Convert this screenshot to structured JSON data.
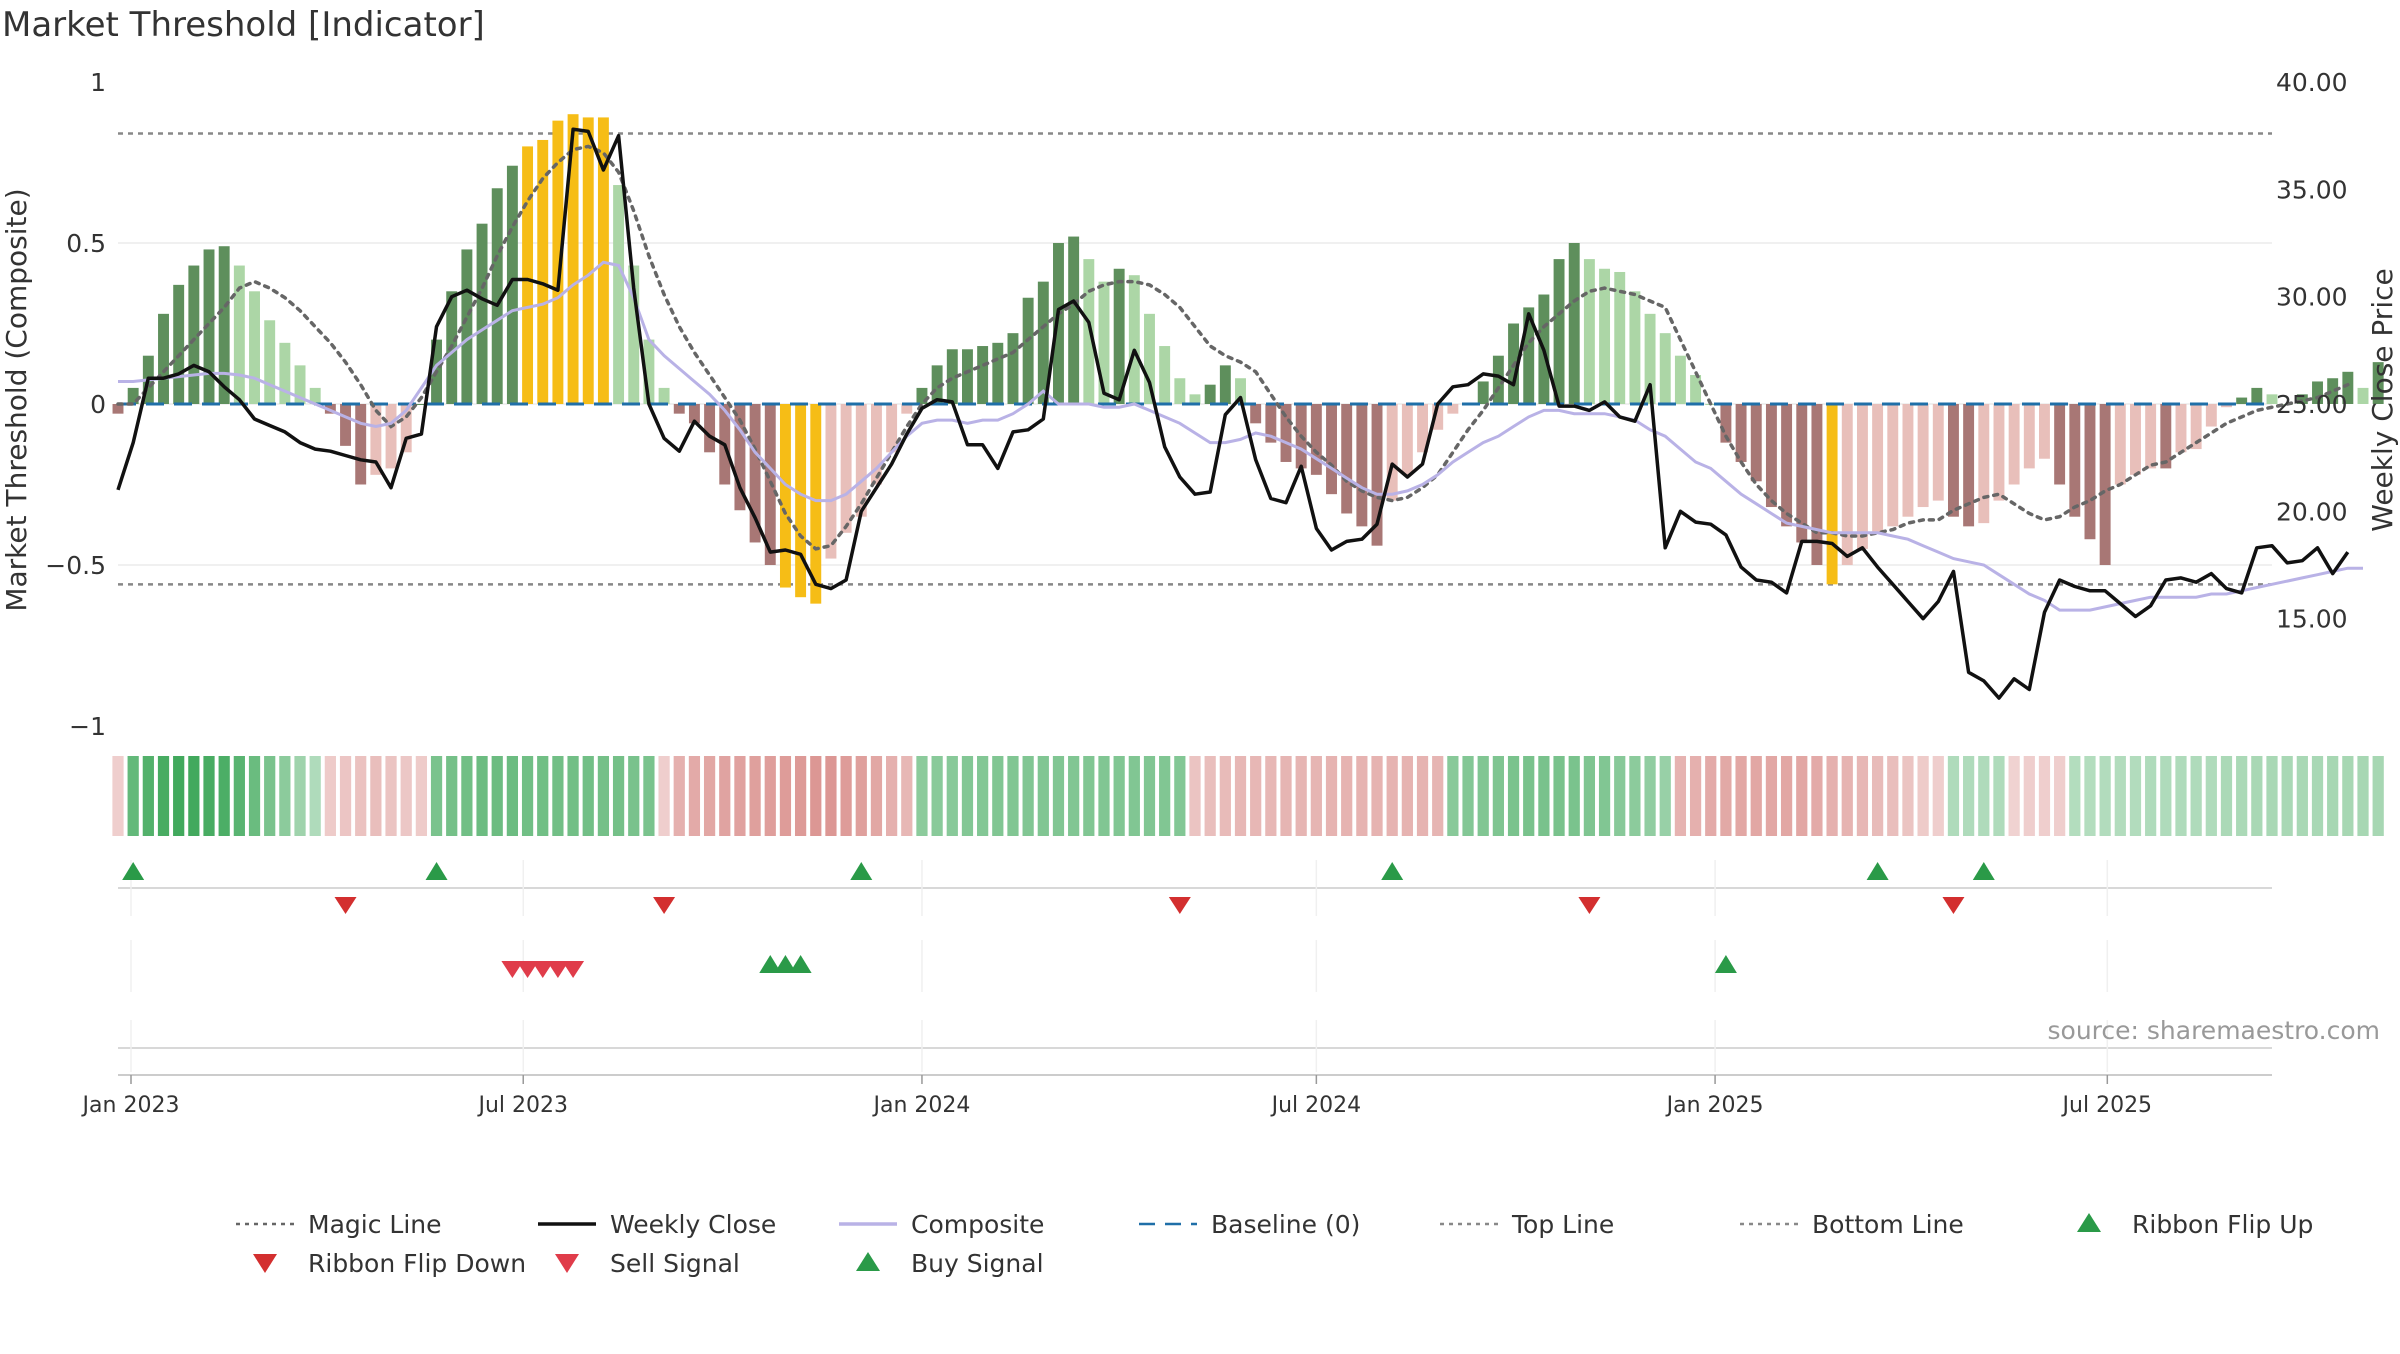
{
  "chart_data": {
    "type": "line",
    "title": "Market Threshold [Indicator]",
    "source_text": "source: sharemaestro.com",
    "left_axis": {
      "label": "Market Threshold (Composite)",
      "ylim": [
        -1,
        1
      ],
      "ticks": [
        1,
        0.5,
        0,
        -0.5,
        -1
      ],
      "tick_labels": [
        "1",
        "0.5",
        "0",
        "−0.5",
        "−1"
      ]
    },
    "right_axis": {
      "label": "Weekly Close Price",
      "ylim": [
        10.0,
        40.0
      ],
      "ticks": [
        40,
        35,
        30,
        25,
        20,
        15
      ],
      "tick_labels": [
        "40.00",
        "35.00",
        "30.00",
        "25.00",
        "20.00",
        "15.00"
      ]
    },
    "x_axis": {
      "start": "2022-12-26",
      "end": "2025-09-15",
      "ticks": [
        "2023-01-01",
        "2023-07-01",
        "2024-01-01",
        "2024-07-01",
        "2025-01-01",
        "2025-07-01"
      ],
      "tick_labels": [
        "Jan 2023",
        "Jul 2023",
        "Jan 2024",
        "Jul 2024",
        "Jan 2025",
        "Jul 2025"
      ]
    },
    "top_line": 0.84,
    "bottom_line": -0.56,
    "baseline": 0,
    "composite_bars": [
      -0.03,
      0.05,
      0.15,
      0.28,
      0.37,
      0.43,
      0.48,
      0.49,
      0.43,
      0.35,
      0.26,
      0.19,
      0.12,
      0.05,
      -0.03,
      -0.13,
      -0.25,
      -0.22,
      -0.2,
      -0.15,
      0.0,
      0.2,
      0.35,
      0.48,
      0.56,
      0.67,
      0.74,
      0.8,
      0.82,
      0.88,
      0.9,
      0.89,
      0.89,
      0.68,
      0.43,
      0.2,
      0.05,
      -0.03,
      -0.06,
      -0.15,
      -0.25,
      -0.33,
      -0.43,
      -0.5,
      -0.57,
      -0.6,
      -0.62,
      -0.48,
      -0.4,
      -0.35,
      -0.25,
      -0.15,
      -0.03,
      0.05,
      0.12,
      0.17,
      0.17,
      0.18,
      0.19,
      0.22,
      0.33,
      0.38,
      0.5,
      0.52,
      0.45,
      0.38,
      0.42,
      0.4,
      0.28,
      0.18,
      0.08,
      0.03,
      0.06,
      0.12,
      0.08,
      -0.06,
      -0.12,
      -0.18,
      -0.2,
      -0.22,
      -0.28,
      -0.34,
      -0.38,
      -0.44,
      -0.3,
      -0.22,
      -0.15,
      -0.08,
      -0.03,
      0.0,
      0.07,
      0.15,
      0.25,
      0.3,
      0.34,
      0.45,
      0.5,
      0.45,
      0.42,
      0.41,
      0.35,
      0.28,
      0.22,
      0.15,
      0.09,
      0.0,
      -0.12,
      -0.18,
      -0.24,
      -0.32,
      -0.38,
      -0.43,
      -0.5,
      -0.56,
      -0.5,
      -0.45,
      -0.4,
      -0.38,
      -0.35,
      -0.32,
      -0.3,
      -0.35,
      -0.38,
      -0.37,
      -0.3,
      -0.25,
      -0.2,
      -0.17,
      -0.25,
      -0.35,
      -0.42,
      -0.5,
      -0.25,
      -0.22,
      -0.2,
      -0.2,
      -0.15,
      -0.14,
      -0.07,
      -0.01,
      0.02,
      0.05,
      0.03,
      0.0,
      0.03,
      0.07,
      0.08,
      0.1,
      0.05,
      0.13
    ],
    "weekly_close": [
      21.0,
      23.2,
      26.2,
      26.2,
      26.4,
      26.8,
      26.5,
      25.8,
      25.2,
      24.3,
      24.0,
      23.7,
      23.2,
      22.9,
      22.8,
      22.6,
      22.4,
      22.3,
      21.1,
      23.4,
      23.6,
      28.6,
      30.0,
      30.3,
      29.9,
      29.6,
      30.8,
      30.8,
      30.6,
      30.3,
      37.8,
      37.7,
      35.9,
      37.5,
      30.4,
      25.0,
      23.4,
      22.8,
      24.2,
      23.5,
      23.1,
      21.1,
      19.7,
      18.1,
      18.2,
      18.0,
      16.6,
      16.4,
      16.8,
      20.0,
      21.1,
      22.2,
      23.6,
      24.8,
      25.2,
      25.1,
      23.1,
      23.1,
      22.0,
      23.7,
      23.8,
      24.3,
      29.4,
      29.8,
      28.8,
      25.5,
      25.2,
      27.5,
      26.0,
      23.0,
      21.6,
      20.8,
      20.9,
      24.5,
      25.3,
      22.4,
      20.6,
      20.4,
      22.1,
      19.2,
      18.2,
      18.6,
      18.7,
      19.4,
      22.2,
      21.6,
      22.2,
      25.0,
      25.8,
      25.9,
      26.4,
      26.3,
      25.9,
      29.2,
      27.5,
      24.9,
      24.9,
      24.7,
      25.1,
      24.4,
      24.2,
      25.9,
      18.3,
      20.0,
      19.5,
      19.4,
      18.9,
      17.4,
      16.8,
      16.7,
      16.2,
      18.6,
      18.6,
      18.5,
      17.9,
      18.3,
      17.4,
      16.6,
      15.8,
      15.0,
      15.8,
      17.2,
      12.5,
      12.1,
      11.3,
      12.2,
      11.7,
      15.3,
      16.8,
      16.5,
      16.3,
      16.3,
      15.7,
      15.1,
      15.6,
      16.8,
      16.9,
      16.7,
      17.1,
      16.4,
      16.2,
      18.3,
      18.4,
      17.6,
      17.7,
      18.3,
      17.1,
      18.1
    ],
    "composite_line": [
      0.07,
      0.07,
      0.075,
      0.08,
      0.085,
      0.09,
      0.095,
      0.095,
      0.09,
      0.08,
      0.06,
      0.04,
      0.02,
      0.0,
      -0.02,
      -0.04,
      -0.06,
      -0.07,
      -0.06,
      -0.02,
      0.05,
      0.12,
      0.16,
      0.2,
      0.23,
      0.26,
      0.29,
      0.3,
      0.31,
      0.33,
      0.37,
      0.4,
      0.44,
      0.43,
      0.33,
      0.2,
      0.15,
      0.11,
      0.07,
      0.03,
      -0.02,
      -0.08,
      -0.15,
      -0.2,
      -0.25,
      -0.28,
      -0.3,
      -0.3,
      -0.28,
      -0.24,
      -0.2,
      -0.15,
      -0.1,
      -0.06,
      -0.05,
      -0.05,
      -0.06,
      -0.05,
      -0.05,
      -0.03,
      0.0,
      0.04,
      0.0,
      0.0,
      0.0,
      -0.01,
      -0.01,
      0.0,
      -0.02,
      -0.04,
      -0.06,
      -0.09,
      -0.12,
      -0.12,
      -0.11,
      -0.09,
      -0.1,
      -0.12,
      -0.14,
      -0.17,
      -0.2,
      -0.23,
      -0.26,
      -0.28,
      -0.28,
      -0.27,
      -0.25,
      -0.22,
      -0.18,
      -0.15,
      -0.12,
      -0.1,
      -0.07,
      -0.04,
      -0.02,
      -0.02,
      -0.03,
      -0.03,
      -0.03,
      -0.04,
      -0.05,
      -0.08,
      -0.1,
      -0.14,
      -0.18,
      -0.2,
      -0.24,
      -0.28,
      -0.31,
      -0.34,
      -0.37,
      -0.38,
      -0.39,
      -0.4,
      -0.4,
      -0.4,
      -0.4,
      -0.41,
      -0.42,
      -0.44,
      -0.46,
      -0.48,
      -0.49,
      -0.5,
      -0.53,
      -0.56,
      -0.59,
      -0.61,
      -0.64,
      -0.64,
      -0.64,
      -0.63,
      -0.62,
      -0.61,
      -0.6,
      -0.6,
      -0.6,
      -0.6,
      -0.59,
      -0.59,
      -0.58,
      -0.57,
      -0.56,
      -0.55,
      -0.54,
      -0.53,
      -0.52,
      -0.51,
      -0.51
    ],
    "magic_line": [
      0.0,
      0.0,
      0.05,
      0.1,
      0.15,
      0.2,
      0.25,
      0.3,
      0.36,
      0.38,
      0.36,
      0.33,
      0.29,
      0.24,
      0.19,
      0.13,
      0.06,
      -0.02,
      -0.07,
      -0.04,
      0.02,
      0.1,
      0.18,
      0.27,
      0.36,
      0.46,
      0.55,
      0.63,
      0.7,
      0.75,
      0.79,
      0.8,
      0.78,
      0.72,
      0.6,
      0.46,
      0.34,
      0.24,
      0.16,
      0.09,
      0.02,
      -0.05,
      -0.14,
      -0.24,
      -0.34,
      -0.41,
      -0.45,
      -0.44,
      -0.38,
      -0.31,
      -0.23,
      -0.15,
      -0.07,
      0.0,
      0.05,
      0.08,
      0.1,
      0.12,
      0.14,
      0.16,
      0.2,
      0.24,
      0.28,
      0.31,
      0.35,
      0.37,
      0.38,
      0.38,
      0.37,
      0.34,
      0.3,
      0.24,
      0.18,
      0.15,
      0.13,
      0.1,
      0.03,
      -0.04,
      -0.1,
      -0.15,
      -0.19,
      -0.24,
      -0.27,
      -0.29,
      -0.3,
      -0.29,
      -0.26,
      -0.22,
      -0.15,
      -0.08,
      -0.02,
      0.05,
      0.12,
      0.19,
      0.24,
      0.28,
      0.32,
      0.35,
      0.36,
      0.35,
      0.34,
      0.32,
      0.3,
      0.2,
      0.1,
      0.0,
      -0.1,
      -0.18,
      -0.25,
      -0.3,
      -0.34,
      -0.37,
      -0.4,
      -0.4,
      -0.41,
      -0.41,
      -0.4,
      -0.39,
      -0.37,
      -0.36,
      -0.36,
      -0.33,
      -0.31,
      -0.29,
      -0.28,
      -0.31,
      -0.34,
      -0.36,
      -0.35,
      -0.32,
      -0.3,
      -0.27,
      -0.25,
      -0.22,
      -0.19,
      -0.18,
      -0.15,
      -0.12,
      -0.09,
      -0.06,
      -0.04,
      -0.02,
      -0.01,
      0.0,
      0.01,
      0.02,
      0.04,
      0.06
    ],
    "ribbon_levels": [
      -0.8,
      3.8,
      4.4,
      4.8,
      5.0,
      5.0,
      4.8,
      4.6,
      4.2,
      3.6,
      3.0,
      2.4,
      1.8,
      1.2,
      -1.0,
      -1.3,
      -1.5,
      -1.6,
      -1.4,
      -1.2,
      -1.0,
      3.0,
      3.2,
      3.4,
      3.5,
      3.5,
      3.5,
      3.4,
      3.4,
      3.3,
      3.3,
      3.3,
      3.2,
      3.2,
      3.1,
      3.0,
      -0.8,
      -2.4,
      -2.6,
      -2.8,
      -3.0,
      -3.1,
      -3.2,
      -3.3,
      -3.4,
      -3.5,
      -3.6,
      -3.6,
      -3.4,
      -3.2,
      -2.8,
      -2.4,
      -2.0,
      2.4,
      2.5,
      2.6,
      2.7,
      2.7,
      2.8,
      2.8,
      2.8,
      2.8,
      2.8,
      2.8,
      2.8,
      2.8,
      2.8,
      2.8,
      2.8,
      2.8,
      2.7,
      -1.4,
      -1.6,
      -1.8,
      -2.0,
      -2.0,
      -2.0,
      -2.1,
      -2.1,
      -2.1,
      -2.2,
      -2.2,
      -2.2,
      -2.2,
      -2.2,
      -2.2,
      -2.2,
      -2.1,
      2.6,
      2.7,
      2.8,
      2.9,
      3.0,
      3.1,
      3.1,
      3.1,
      3.0,
      2.9,
      2.8,
      2.6,
      2.4,
      2.2,
      2.0,
      -2.2,
      -2.4,
      -2.6,
      -2.7,
      -2.8,
      -2.8,
      -2.8,
      -2.8,
      -2.8,
      -2.6,
      -2.4,
      -2.2,
      -2.0,
      -1.8,
      -1.6,
      -1.4,
      -1.0,
      -0.8,
      1.2,
      1.2,
      1.2,
      1.2,
      -0.6,
      -0.8,
      -0.8,
      -0.8,
      1.0,
      1.0,
      1.1,
      1.1,
      1.1,
      1.2,
      1.2,
      1.2,
      1.2,
      1.2,
      1.3,
      1.3,
      1.4,
      1.4,
      1.4,
      1.4,
      1.4,
      1.5,
      1.5,
      1.5,
      1.5
    ],
    "ribbon_flip_up": [
      "2023-01-02",
      "2023-05-22",
      "2023-12-04",
      "2024-08-05",
      "2025-03-17",
      "2025-05-05"
    ],
    "ribbon_flip_down": [
      "2023-04-10",
      "2023-09-04",
      "2024-04-29",
      "2024-11-04",
      "2025-04-21"
    ],
    "sell_signal": [
      "2023-06-26",
      "2023-07-03",
      "2023-07-10",
      "2023-07-17",
      "2023-07-24"
    ],
    "buy_signal": [
      "2023-10-23",
      "2023-10-30",
      "2023-11-06",
      "2025-01-06"
    ],
    "legend": [
      {
        "label": "Magic Line",
        "style": "dotted-line",
        "color": "#666666"
      },
      {
        "label": "Weekly Close",
        "style": "solid-line",
        "color": "#111111"
      },
      {
        "label": "Composite",
        "style": "solid-line",
        "color": "#b9b2e6"
      },
      {
        "label": "Baseline (0)",
        "style": "dashed-line",
        "color": "#1f6fa8"
      },
      {
        "label": "Top Line",
        "style": "dotted-line",
        "color": "#888888"
      },
      {
        "label": "Bottom Line",
        "style": "dotted-line",
        "color": "#888888"
      },
      {
        "label": "Ribbon Flip Up",
        "style": "triangle-up",
        "color": "#2a9a48"
      },
      {
        "label": "Ribbon Flip Down",
        "style": "triangle-down",
        "color": "#d32f2f"
      },
      {
        "label": "Sell Signal",
        "style": "triangle-down",
        "color": "#e03c4a"
      },
      {
        "label": "Buy Signal",
        "style": "triangle-up",
        "color": "#2a9a48"
      }
    ],
    "colors": {
      "pos_strong": "#5e8f5c",
      "pos_weak": "#acd6a6",
      "neg_strong": "#a87775",
      "neg_weak": "#e8bfba",
      "extreme": "#f6bd16",
      "magic": "#666666",
      "close": "#111111",
      "composite": "#b9b2e6",
      "baseline": "#1f6fa8",
      "thresholds": "#888888",
      "flip_up": "#2a9a48",
      "flip_down": "#d32f2f",
      "sell": "#e03c4a",
      "buy": "#2a9a48"
    }
  }
}
